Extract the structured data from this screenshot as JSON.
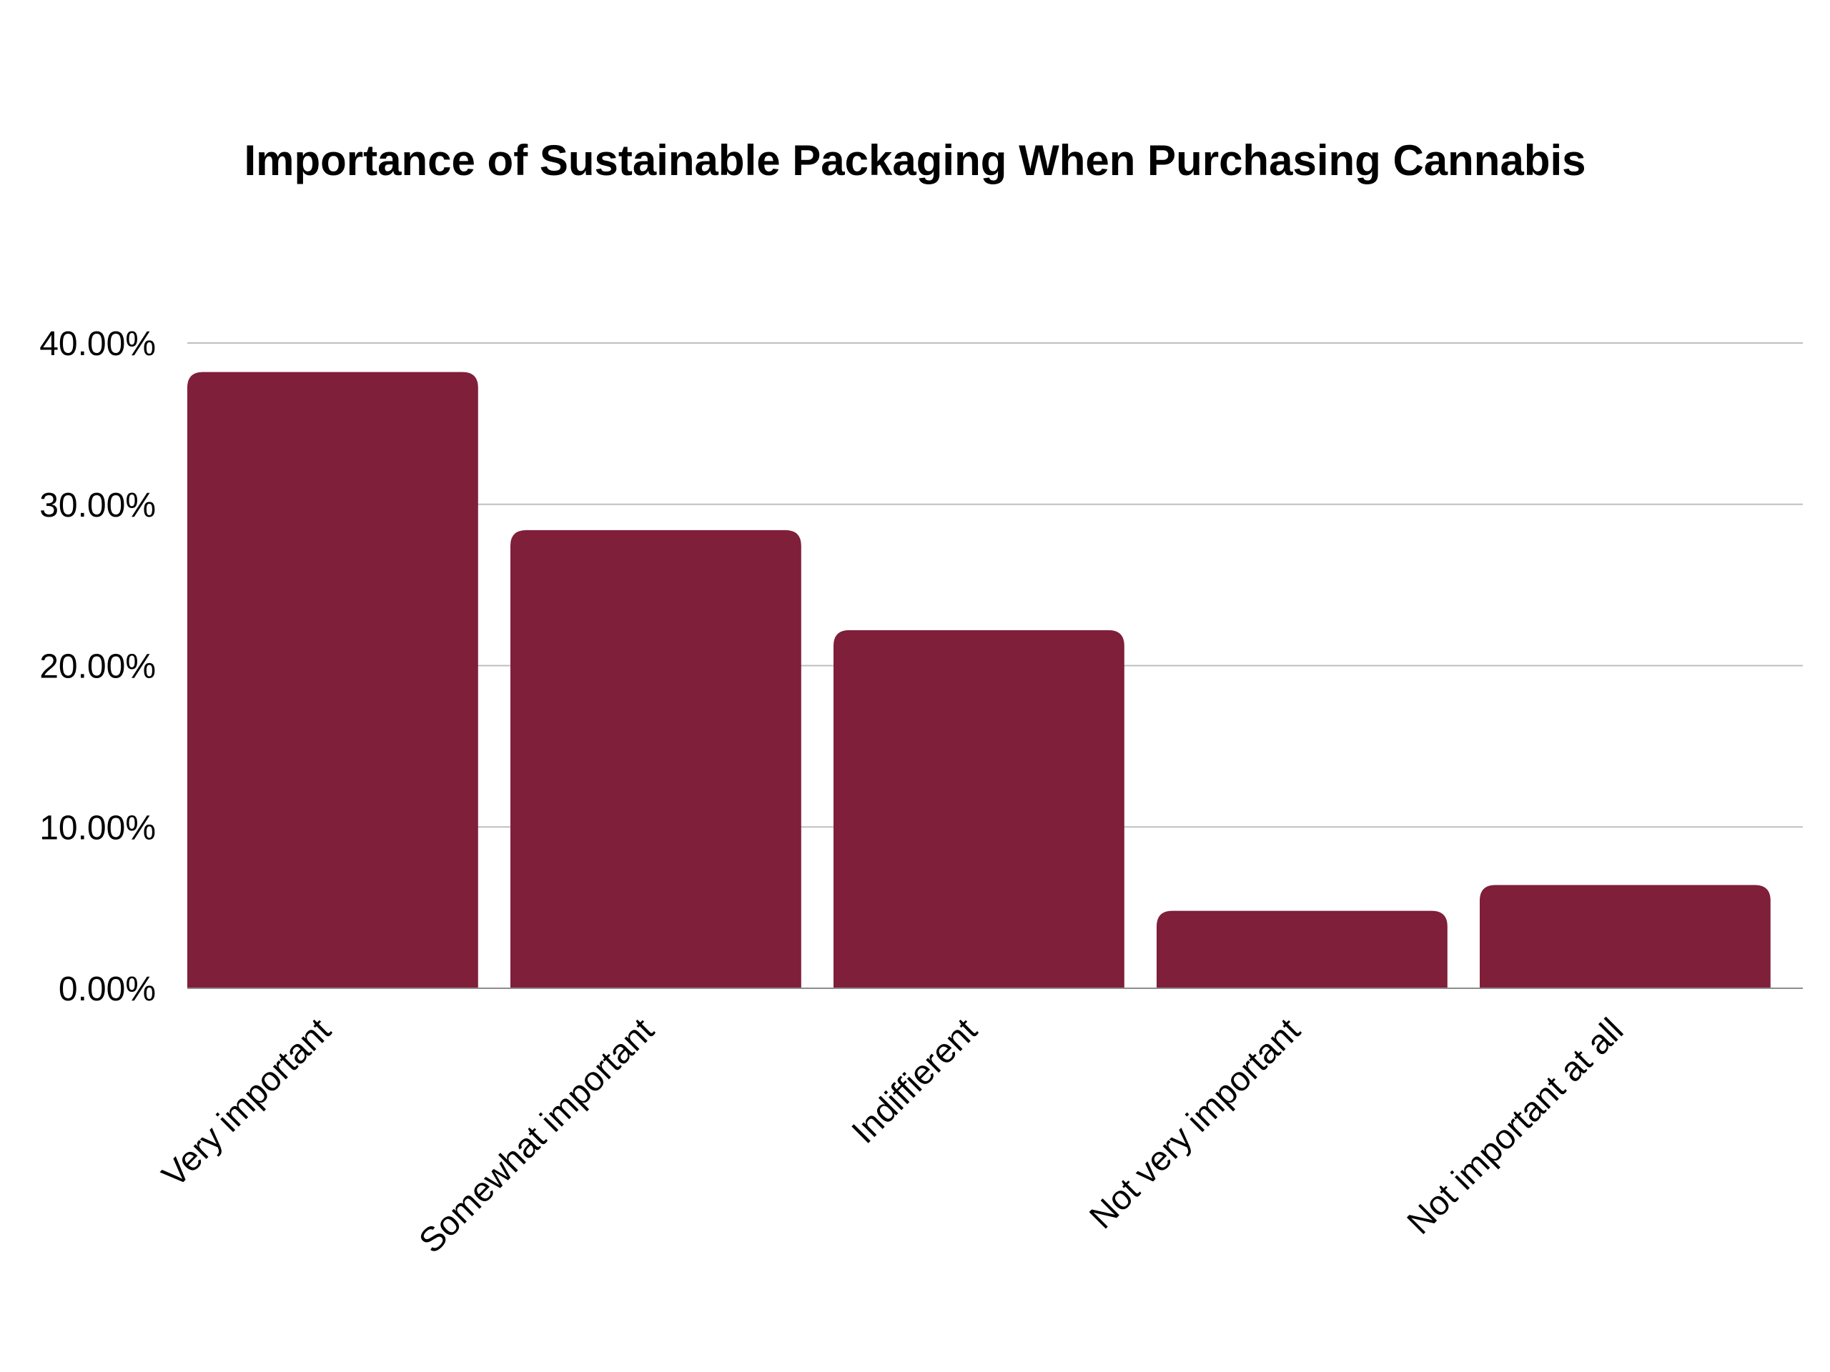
{
  "chart_data": {
    "type": "bar",
    "title": "Importance of Sustainable Packaging When Purchasing Cannabis",
    "categories": [
      "Very important",
      "Somewhat important",
      "Indiffierent",
      "Not very important",
      "Not important at all"
    ],
    "values": [
      38.2,
      28.4,
      22.2,
      4.8,
      6.4
    ],
    "ylim": [
      0,
      40
    ],
    "yticks": [
      "0.00%",
      "10.00%",
      "20.00%",
      "30.00%",
      "40.00%"
    ],
    "ytick_values": [
      0,
      10,
      20,
      30,
      40
    ],
    "grid": true,
    "colors": {
      "bar": "#7F1F3A",
      "grid": "#BFBFBF",
      "axis": "#8C8C8C"
    }
  }
}
